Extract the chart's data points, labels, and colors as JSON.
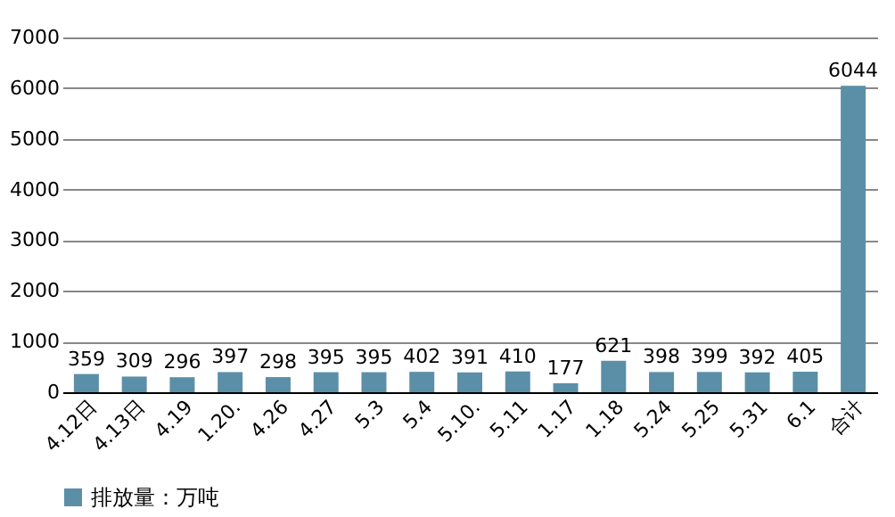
{
  "chart_data": {
    "type": "bar",
    "categories": [
      "4.12日",
      "4.13日",
      "4.19",
      "1.20.",
      "4.26",
      "4.27",
      "5.3",
      "5.4",
      "5.10.",
      "5.11",
      "1.17",
      "1.18",
      "5.24",
      "5.25",
      "5.31",
      "6.1",
      "合计"
    ],
    "series": [
      {
        "name": "排放量：万吨",
        "color": "#5b8fa8",
        "values": [
          359,
          309,
          296,
          397,
          298,
          395,
          395,
          402,
          391,
          410,
          177,
          621,
          398,
          399,
          392,
          405,
          6044
        ]
      }
    ],
    "ylim": [
      0,
      7000
    ],
    "yticks": [
      0,
      1000,
      2000,
      3000,
      4000,
      5000,
      6000,
      7000
    ],
    "grid": "y",
    "legend": "bottom",
    "data_labels": true
  }
}
